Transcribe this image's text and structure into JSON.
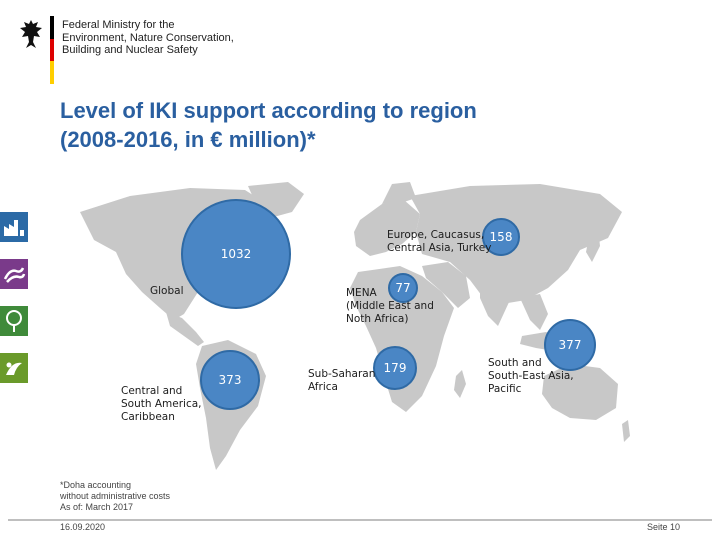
{
  "header": {
    "ministry_lines": [
      "Federal Ministry for the",
      "Environment, Nature Conservation,",
      "Building and Nuclear Safety"
    ],
    "flag_colors": [
      "#000000",
      "#dd0000",
      "#ffce00"
    ]
  },
  "title_lines": [
    "Level of IKI support according to region",
    "(2008-2016, in € million)*"
  ],
  "regions": {
    "global": {
      "value": "1032",
      "label": [
        "Global"
      ]
    },
    "europe": {
      "value": "158",
      "label": [
        "Europe, Caucasus,",
        "Central Asia, Turkey"
      ]
    },
    "mena": {
      "value": "77",
      "label": [
        "MENA",
        "(Middle East and",
        "Noth Africa)"
      ]
    },
    "south_asia": {
      "value": "377",
      "label": [
        "South and",
        "South-East Asia,",
        "Pacific"
      ]
    },
    "latin_america": {
      "value": "373",
      "label": [
        "Central and",
        "South America,",
        "Caribbean"
      ]
    },
    "africa": {
      "value": "179",
      "label": [
        "Sub-Saharan",
        "Africa"
      ]
    }
  },
  "footnote_lines": [
    "*Doha accounting",
    "without administrative costs",
    "As of:  March 2017"
  ],
  "footer": {
    "date": "16.09.2020",
    "page": "Seite 10"
  },
  "colors": {
    "title": "#2a5fa0",
    "bubble": "#4a86c5",
    "map": "#c8c8c8",
    "sidebar": [
      "#2b6aa6",
      "#7a3a8a",
      "#3f8a3a",
      "#6a9a2a"
    ]
  }
}
